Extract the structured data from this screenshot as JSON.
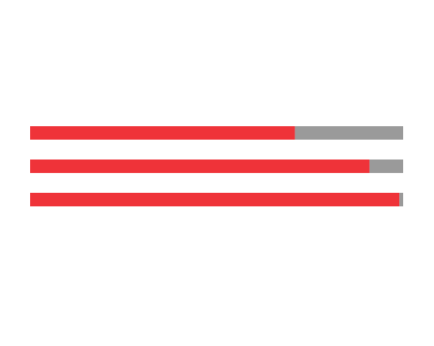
{
  "chart_data": {
    "type": "bar",
    "orientation": "horizontal",
    "stacked": true,
    "categories": [
      null,
      null,
      null
    ],
    "series": [
      {
        "color": "#ef3339",
        "values": [
          71,
          91,
          99
        ]
      },
      {
        "color": "#9a9a9a",
        "values": [
          29,
          9,
          1
        ]
      }
    ],
    "xlim": [
      0,
      100
    ]
  }
}
